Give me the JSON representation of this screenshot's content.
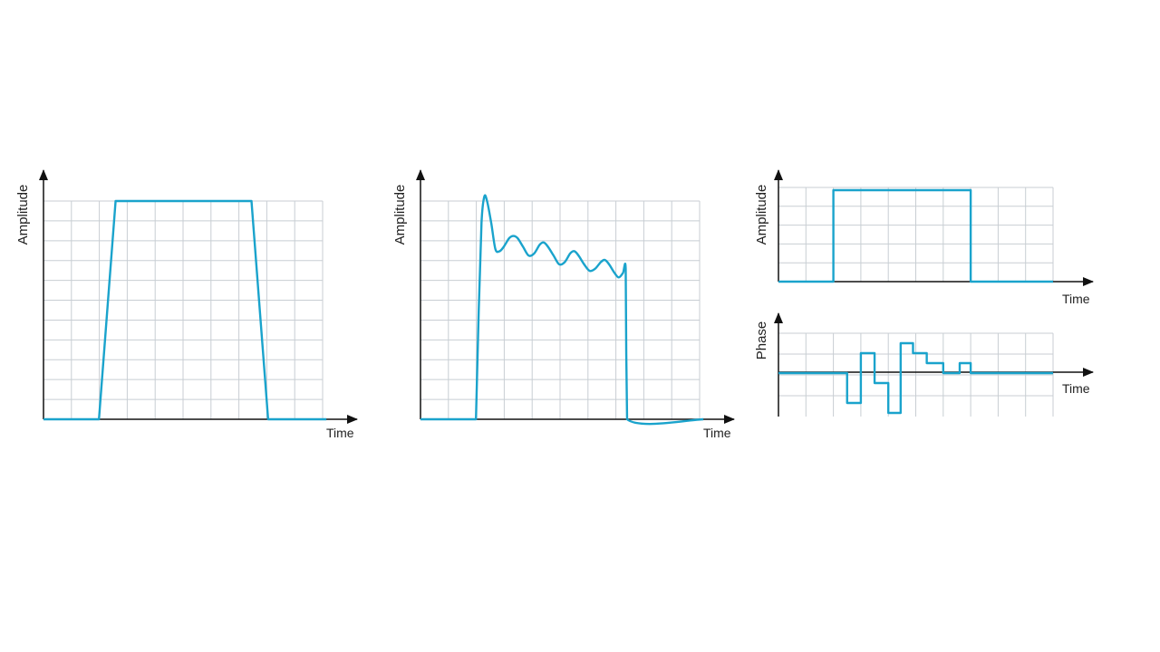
{
  "colors": {
    "trace": "#1aa3cc",
    "grid": "#c8ced3",
    "axis": "#111111"
  },
  "chart_data": [
    {
      "type": "line",
      "xlabel": "Time",
      "ylabel": "Amplitude",
      "xlim": [
        0,
        10
      ],
      "ylim": [
        0,
        10
      ],
      "grid": true,
      "series": [
        {
          "values": [
            [
              0,
              0
            ],
            [
              2,
              0
            ],
            [
              2.6,
              10
            ],
            [
              7.5,
              10
            ],
            [
              8.1,
              0
            ],
            [
              10.2,
              0
            ]
          ]
        }
      ]
    },
    {
      "type": "line",
      "xlabel": "Time",
      "ylabel": "Amplitude",
      "xlim": [
        0,
        10
      ],
      "ylim": [
        0,
        10
      ],
      "grid": true,
      "series": [
        {
          "values": [
            [
              0,
              0
            ],
            [
              2.0,
              0
            ],
            [
              2.1,
              5.0
            ],
            [
              2.2,
              9.0
            ],
            [
              2.3,
              10.2
            ],
            [
              2.4,
              10.0
            ],
            [
              2.55,
              9.0
            ],
            [
              2.7,
              7.8
            ],
            [
              2.85,
              7.7
            ],
            [
              3.0,
              7.9
            ],
            [
              3.2,
              8.3
            ],
            [
              3.35,
              8.4
            ],
            [
              3.5,
              8.3
            ],
            [
              3.7,
              7.9
            ],
            [
              3.9,
              7.5
            ],
            [
              4.1,
              7.6
            ],
            [
              4.3,
              8.0
            ],
            [
              4.45,
              8.1
            ],
            [
              4.6,
              7.9
            ],
            [
              4.8,
              7.5
            ],
            [
              5.0,
              7.1
            ],
            [
              5.2,
              7.2
            ],
            [
              5.4,
              7.6
            ],
            [
              5.55,
              7.7
            ],
            [
              5.7,
              7.5
            ],
            [
              5.9,
              7.1
            ],
            [
              6.1,
              6.8
            ],
            [
              6.3,
              6.9
            ],
            [
              6.5,
              7.2
            ],
            [
              6.65,
              7.3
            ],
            [
              6.8,
              7.1
            ],
            [
              7.0,
              6.7
            ],
            [
              7.15,
              6.5
            ],
            [
              7.3,
              6.7
            ],
            [
              7.4,
              6.9
            ],
            [
              7.42,
              3.0
            ],
            [
              7.45,
              0
            ],
            [
              10.2,
              0
            ]
          ]
        }
      ]
    },
    {
      "type": "line",
      "xlabel": "Time",
      "ylabel": "Amplitude",
      "xlim": [
        0,
        10
      ],
      "ylim": [
        0,
        5
      ],
      "grid": true,
      "series": [
        {
          "values": [
            [
              0,
              0
            ],
            [
              2,
              0
            ],
            [
              2,
              5
            ],
            [
              7,
              5
            ],
            [
              7,
              0
            ],
            [
              10,
              0
            ]
          ]
        }
      ]
    },
    {
      "type": "line",
      "xlabel": "Time",
      "ylabel": "Phase",
      "xlim": [
        0,
        10
      ],
      "ylim": [
        -2,
        2
      ],
      "grid": true,
      "series": [
        {
          "values": [
            [
              0,
              0
            ],
            [
              2.5,
              0
            ],
            [
              2.5,
              -1.5
            ],
            [
              3,
              -1.5
            ],
            [
              3,
              1
            ],
            [
              3.5,
              1
            ],
            [
              3.5,
              -0.5
            ],
            [
              4,
              -0.5
            ],
            [
              4,
              -2
            ],
            [
              4.45,
              -2
            ],
            [
              4.45,
              1.5
            ],
            [
              4.9,
              1.5
            ],
            [
              4.9,
              1
            ],
            [
              5.4,
              1
            ],
            [
              5.4,
              0.5
            ],
            [
              6,
              0.5
            ],
            [
              6,
              0
            ],
            [
              6.6,
              0
            ],
            [
              6.6,
              0.5
            ],
            [
              7,
              0.5
            ],
            [
              7,
              0
            ],
            [
              10,
              0
            ]
          ]
        }
      ]
    }
  ]
}
